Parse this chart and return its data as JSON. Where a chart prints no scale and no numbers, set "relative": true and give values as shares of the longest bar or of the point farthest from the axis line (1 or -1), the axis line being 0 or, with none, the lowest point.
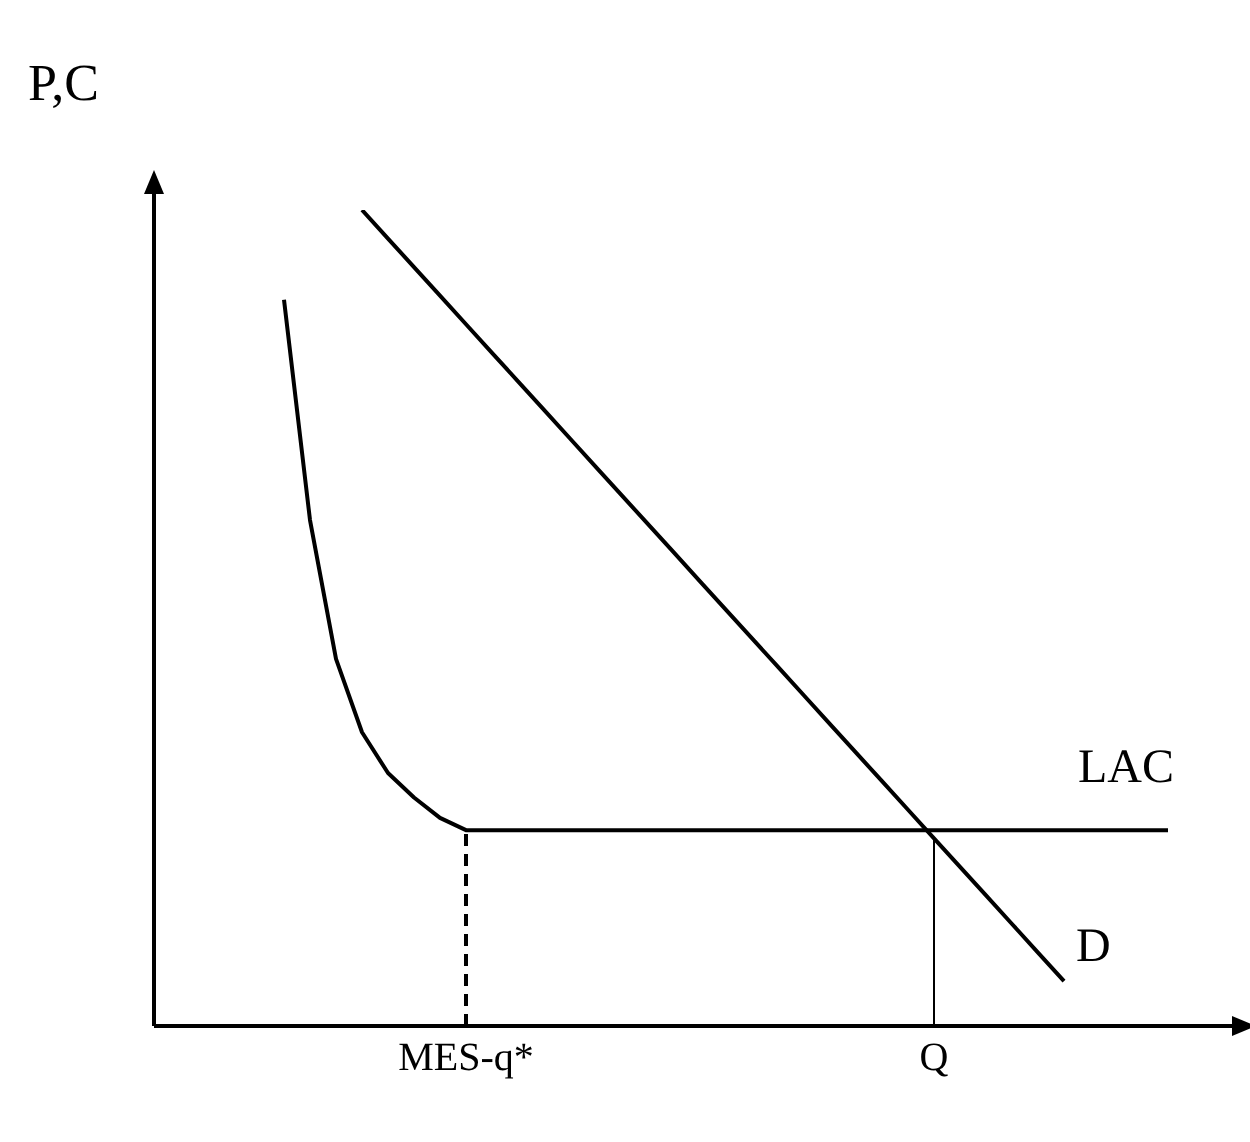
{
  "chart_data": {
    "type": "line",
    "relative": true,
    "ylabel": "P,C",
    "legend": false,
    "marker": "none",
    "categories": [
      null,
      null,
      null,
      null,
      null,
      null,
      null,
      null,
      null,
      null,
      null,
      null,
      "MES-q*",
      null,
      null,
      null,
      null,
      null,
      null,
      null,
      null,
      null,
      null,
      null,
      null,
      null,
      null,
      null,
      null,
      null,
      "Q",
      null,
      null,
      null,
      null,
      null,
      null,
      null,
      null,
      null,
      null
    ],
    "series": [
      {
        "name": "LAC",
        "color": "#000000",
        "values": [
          null,
          null,
          null,
          null,
          null,
          0.89,
          0.62,
          0.45,
          0.36,
          0.31,
          0.28,
          0.255,
          0.24,
          0.24,
          0.24,
          0.24,
          0.24,
          0.24,
          0.24,
          0.24,
          0.24,
          0.24,
          0.24,
          0.24,
          0.24,
          0.24,
          0.24,
          0.24,
          0.24,
          0.24,
          0.24,
          0.24,
          0.24,
          0.24,
          0.24,
          0.24,
          0.24,
          0.24,
          0.24,
          0.24,
          null
        ]
      },
      {
        "name": "D",
        "color": "#000000",
        "values": [
          null,
          null,
          null,
          null,
          null,
          null,
          null,
          null,
          1,
          0.965,
          0.93,
          0.895,
          0.86,
          0.825,
          0.79,
          0.755,
          0.72,
          0.685,
          0.65,
          0.615,
          0.58,
          0.545,
          0.51,
          0.475,
          0.44,
          0.405,
          0.37,
          0.335,
          0.3,
          0.265,
          0.23,
          0.195,
          0.16,
          0.125,
          0.09,
          0.055,
          null,
          null,
          null,
          null,
          null
        ]
      }
    ],
    "ref_lines": [
      {
        "axis": "x",
        "value": "MES-q*",
        "line_style": "dashed",
        "color": "#000000"
      },
      {
        "axis": "x",
        "value": "Q",
        "line_style": "solid",
        "color": "#000000"
      }
    ]
  }
}
